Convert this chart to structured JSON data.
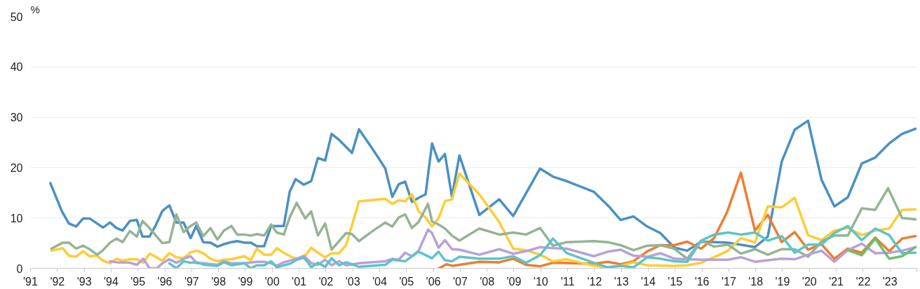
{
  "chart_data": {
    "type": "line",
    "ylabel": "%",
    "xlim": [
      1991,
      2024
    ],
    "ylim": [
      0,
      50
    ],
    "yticks": [
      0,
      10,
      20,
      30,
      40,
      50
    ],
    "xticks": [
      {
        "value": 1991,
        "label": "'91"
      },
      {
        "value": 1992,
        "label": "'92"
      },
      {
        "value": 1993,
        "label": "'93"
      },
      {
        "value": 1994,
        "label": "'94"
      },
      {
        "value": 1995,
        "label": "'95"
      },
      {
        "value": 1996,
        "label": "'96"
      },
      {
        "value": 1997,
        "label": "'97"
      },
      {
        "value": 1998,
        "label": "'98"
      },
      {
        "value": 1999,
        "label": "'99"
      },
      {
        "value": 2000,
        "label": "'00"
      },
      {
        "value": 2001,
        "label": "'01"
      },
      {
        "value": 2002,
        "label": "'02"
      },
      {
        "value": 2003,
        "label": "'03"
      },
      {
        "value": 2004,
        "label": "'04"
      },
      {
        "value": 2005,
        "label": "'05"
      },
      {
        "value": 2006,
        "label": "'06"
      },
      {
        "value": 2007,
        "label": "'07"
      },
      {
        "value": 2008,
        "label": "'08"
      },
      {
        "value": 2009,
        "label": "'09"
      },
      {
        "value": 2010,
        "label": "'10"
      },
      {
        "value": 2011,
        "label": "'11"
      },
      {
        "value": 2012,
        "label": "'12"
      },
      {
        "value": 2013,
        "label": "'13"
      },
      {
        "value": 2014,
        "label": "'14"
      },
      {
        "value": 2015,
        "label": "'15"
      },
      {
        "value": 2016,
        "label": "'16"
      },
      {
        "value": 2017,
        "label": "'17"
      },
      {
        "value": 2018,
        "label": "'18"
      },
      {
        "value": 2019,
        "label": "'19"
      },
      {
        "value": 2020,
        "label": "'20"
      },
      {
        "value": 2021,
        "label": "'21"
      },
      {
        "value": 2022,
        "label": "'22"
      },
      {
        "value": 2023,
        "label": "'23"
      },
      {
        "value": 2024,
        "label": null
      }
    ],
    "grid": "y",
    "marker": "none",
    "line_style": "solid",
    "series": [
      {
        "color": "#4a90c4",
        "x": [
          1991.74,
          1992.17,
          1992.43,
          1992.7,
          1992.96,
          1993.2,
          1993.7,
          1993.96,
          1994.2,
          1994.43,
          1994.7,
          1994.96,
          1995.17,
          1995.43,
          1995.65,
          1995.91,
          1996.17,
          1996.43,
          1996.7,
          1996.96,
          1997.17,
          1997.43,
          1997.7,
          1997.96,
          1998.2,
          1998.48,
          1998.7,
          1998.96,
          1999.2,
          1999.43,
          1999.7,
          1999.96,
          2000.17,
          2000.43,
          2000.65,
          2000.87,
          2001.17,
          2001.45,
          2001.7,
          2001.97,
          2002.21,
          2002.49,
          2002.75,
          2002.97,
          2003.23,
          2003.71,
          2003.97,
          2004.21,
          2004.47,
          2004.71,
          2004.95,
          2005.2,
          2005.45,
          2005.71,
          2005.95,
          2006.19,
          2006.43,
          2006.69,
          2006.97,
          2007.71,
          2008.45,
          2008.97,
          2009.97,
          2010.45,
          2010.97,
          2011.97,
          2012.53,
          2012.97,
          2013.45,
          2013.93,
          2014.45,
          2014.97,
          2015.45,
          2015.97,
          2016.97,
          2017.97,
          2018.45,
          2018.97,
          2019.45,
          2019.95,
          2020.45,
          2020.93,
          2021.43,
          2021.95,
          2022.45,
          2022.97,
          2023.45,
          2023.95
        ],
        "values": [
          16.9,
          11.3,
          8.9,
          8.3,
          9.9,
          9.9,
          8.1,
          9.1,
          8.0,
          7.5,
          9.4,
          9.6,
          6.3,
          6.3,
          8.4,
          11.4,
          12.5,
          9.1,
          9.1,
          6.0,
          8.4,
          5.2,
          5.1,
          4.3,
          4.8,
          5.2,
          5.4,
          5.1,
          5.1,
          4.4,
          4.4,
          8.4,
          8.4,
          8.4,
          15.2,
          17.7,
          16.6,
          17.3,
          21.9,
          21.4,
          26.7,
          25.5,
          24.1,
          22.9,
          27.6,
          23.9,
          21.8,
          19.8,
          14.2,
          16.7,
          17.2,
          13.2,
          14.0,
          14.7,
          24.8,
          21.2,
          22.7,
          14.2,
          22.4,
          10.6,
          13.7,
          10.4,
          19.8,
          18.2,
          17.3,
          15.2,
          12.3,
          9.6,
          10.3,
          8.4,
          7.0,
          4.1,
          3.5,
          5.3,
          5.1,
          4.2,
          6.3,
          21.2,
          27.5,
          29.3,
          17.6,
          12.3,
          14.1,
          20.8,
          22.0,
          24.8,
          26.7,
          27.7
        ]
      },
      {
        "color": "#ed7d31",
        "x": [
          2006.21,
          2006.49,
          2006.71,
          2007.71,
          2008.45,
          2008.97,
          2009.45,
          2009.97,
          2010.45,
          2011.97,
          2012.49,
          2012.97,
          2013.45,
          2013.97,
          2014.45,
          2014.97,
          2015.45,
          2015.97,
          2016.45,
          2016.93,
          2017.45,
          2017.97,
          2018.45,
          2018.97,
          2019.45,
          2019.95,
          2020.45,
          2020.93,
          2021.43,
          2021.95,
          2022.45,
          2022.97,
          2023.45,
          2023.95
        ],
        "values": [
          0,
          0.8,
          0.5,
          1.3,
          1.2,
          1.9,
          0.7,
          0.4,
          1.1,
          0.9,
          1.3,
          0.8,
          1.4,
          3.4,
          4.6,
          4.6,
          5.3,
          3.9,
          6.0,
          11.1,
          19.0,
          7.5,
          10.6,
          5.2,
          7.2,
          3.7,
          4.8,
          1.9,
          3.9,
          3.1,
          6.1,
          3.4,
          5.9,
          6.4
        ]
      },
      {
        "color": "#ffcc33",
        "x": [
          1991.78,
          1992.2,
          1992.43,
          1992.7,
          1992.96,
          1993.2,
          1993.48,
          1993.7,
          1993.96,
          1994.2,
          1994.43,
          1994.7,
          1994.96,
          1995.2,
          1995.43,
          1995.7,
          1995.91,
          1996.17,
          1996.43,
          1996.7,
          1996.96,
          1997.2,
          1997.46,
          1997.7,
          1997.96,
          1998.2,
          1998.48,
          1998.96,
          1999.2,
          1999.43,
          1999.7,
          1999.96,
          2000.17,
          2000.43,
          2000.7,
          2000.91,
          2001.26,
          2001.45,
          2001.7,
          2001.97,
          2002.21,
          2002.49,
          2002.75,
          2003.23,
          2004.21,
          2004.47,
          2004.71,
          2004.95,
          2005.2,
          2005.45,
          2005.71,
          2005.95,
          2006.19,
          2006.43,
          2006.69,
          2006.97,
          2007.71,
          2008.45,
          2008.97,
          2009.45,
          2009.97,
          2010.45,
          2010.97,
          2011.97,
          2012.49,
          2012.97,
          2013.45,
          2013.97,
          2014.97,
          2015.45,
          2015.97,
          2016.45,
          2016.97,
          2017.45,
          2017.97,
          2018.45,
          2018.97,
          2019.45,
          2019.95,
          2020.45,
          2020.93,
          2021.43,
          2021.95,
          2022.45,
          2022.97,
          2023.45,
          2023.95
        ],
        "values": [
          3.5,
          4.0,
          2.5,
          2.3,
          3.4,
          2.4,
          2.5,
          1.5,
          1.0,
          1.9,
          1.5,
          1.8,
          1.8,
          1.1,
          2.9,
          2.2,
          1.5,
          3.0,
          2.2,
          2.0,
          3.2,
          3.5,
          2.9,
          1.9,
          1.4,
          1.7,
          1.8,
          2.4,
          1.6,
          3.9,
          2.7,
          2.7,
          4.0,
          3.1,
          2.3,
          1.9,
          2.7,
          4.1,
          3.1,
          2.2,
          3.0,
          3.0,
          4.6,
          13.3,
          13.8,
          12.8,
          13.5,
          13.3,
          14.7,
          11.3,
          10.1,
          8.3,
          9.9,
          13.3,
          13.7,
          18.8,
          14.7,
          9.2,
          3.9,
          3.6,
          2.7,
          1.4,
          1.8,
          0.5,
          0.2,
          0.5,
          1.2,
          0.6,
          0.5,
          0.6,
          1.1,
          2.2,
          3.5,
          6.0,
          5.1,
          12.3,
          12.1,
          14.0,
          6.6,
          5.6,
          7.5,
          8.0,
          6.6,
          7.5,
          7.9,
          11.6,
          11.7
        ]
      },
      {
        "color": "#94b494",
        "x": [
          1991.78,
          1992.2,
          1992.43,
          1992.7,
          1992.96,
          1993.2,
          1993.48,
          1993.7,
          1993.96,
          1994.2,
          1994.43,
          1994.7,
          1994.96,
          1995.17,
          1995.43,
          1995.7,
          1995.91,
          1996.17,
          1996.43,
          1996.7,
          1996.96,
          1997.17,
          1997.43,
          1997.7,
          1997.96,
          1998.2,
          1998.48,
          1998.7,
          1998.96,
          1999.2,
          1999.43,
          1999.7,
          1999.96,
          2000.17,
          2000.43,
          2000.65,
          2000.91,
          2001.23,
          2001.45,
          2001.7,
          2001.97,
          2002.21,
          2002.75,
          2002.97,
          2003.23,
          2003.71,
          2004.21,
          2004.47,
          2004.71,
          2004.95,
          2005.2,
          2005.45,
          2005.8,
          2005.95,
          2006.19,
          2006.43,
          2006.69,
          2006.97,
          2007.71,
          2008.45,
          2008.97,
          2009.45,
          2009.97,
          2010.45,
          2010.97,
          2011.97,
          2012.49,
          2012.97,
          2013.45,
          2013.97,
          2014.45,
          2014.97,
          2015.45,
          2015.97,
          2016.45,
          2016.97,
          2017.45,
          2017.97,
          2018.45,
          2018.97,
          2019.45,
          2019.95,
          2020.45,
          2020.93,
          2021.43,
          2021.95,
          2022.45,
          2022.93,
          2023.45,
          2023.95
        ],
        "values": [
          3.9,
          5.1,
          5.1,
          3.9,
          4.5,
          3.8,
          2.7,
          3.6,
          5.1,
          5.9,
          5.2,
          7.4,
          6.3,
          9.4,
          8.0,
          6.3,
          5.0,
          5.2,
          10.7,
          7.2,
          8.4,
          9.1,
          6.4,
          8.0,
          5.7,
          7.5,
          8.4,
          6.7,
          6.7,
          6.5,
          6.8,
          6.5,
          8.7,
          7.1,
          6.7,
          10.1,
          13.0,
          9.9,
          11.3,
          6.5,
          8.9,
          3.7,
          7.0,
          6.8,
          5.4,
          7.3,
          9.1,
          8.3,
          10.1,
          10.7,
          8.0,
          9.2,
          12.8,
          9.3,
          8.7,
          7.9,
          6.5,
          5.5,
          7.9,
          6.7,
          7.1,
          6.7,
          8.0,
          4.5,
          5.2,
          5.4,
          5.2,
          4.6,
          3.6,
          4.5,
          4.6,
          3.9,
          1.9,
          5.5,
          4.3,
          4.7,
          2.9,
          3.8,
          2.7,
          3.8,
          3.8,
          2.3,
          5.3,
          6.5,
          6.5,
          11.9,
          11.6,
          15.9,
          10.0,
          9.7
        ]
      },
      {
        "color": "#b9a0d9",
        "x": [
          1993.96,
          1994.2,
          1994.7,
          1994.96,
          1995.2,
          1995.43,
          1995.7,
          1995.91,
          1996.17,
          1996.43,
          1996.7,
          1996.96,
          1997.2,
          1997.46,
          1997.96,
          1998.2,
          1998.48,
          1998.96,
          1999.43,
          1999.7,
          1999.96,
          2000.17,
          2000.43,
          2000.91,
          2001.2,
          2001.45,
          2001.7,
          2001.97,
          2002.21,
          2002.49,
          2002.75,
          2003.23,
          2004.21,
          2004.47,
          2004.71,
          2004.95,
          2005.2,
          2005.45,
          2005.8,
          2005.95,
          2006.19,
          2006.43,
          2006.69,
          2006.97,
          2007.71,
          2008.45,
          2008.97,
          2009.45,
          2009.97,
          2010.45,
          2010.97,
          2011.97,
          2012.49,
          2012.97,
          2013.45,
          2013.97,
          2014.45,
          2014.97,
          2015.97,
          2016.97,
          2017.45,
          2017.97,
          2018.45,
          2018.97,
          2019.45,
          2019.95,
          2020.45,
          2020.93,
          2021.43,
          2021.95,
          2022.45,
          2022.97,
          2023.45,
          2023.95
        ],
        "values": [
          1.4,
          1.2,
          1.1,
          0.7,
          1.9,
          0,
          0,
          1.0,
          1.8,
          1.1,
          1.9,
          2.4,
          1.0,
          1.0,
          0.7,
          1.4,
          1.0,
          1.0,
          1.3,
          1.3,
          1.0,
          0.5,
          1.2,
          1.9,
          2.4,
          1.0,
          0.7,
          1.7,
          0.6,
          1.4,
          0.6,
          1.0,
          1.4,
          1.9,
          1.7,
          3.1,
          2.4,
          3.5,
          7.7,
          7.0,
          4.1,
          5.6,
          3.8,
          3.7,
          2.7,
          3.8,
          2.9,
          3.4,
          4.2,
          4.0,
          3.9,
          2.4,
          3.3,
          3.7,
          2.5,
          2.3,
          3.0,
          1.9,
          1.7,
          1.7,
          2.2,
          1.3,
          1.6,
          1.9,
          1.8,
          2.7,
          3.5,
          1.3,
          3.6,
          4.9,
          3.0,
          3.1,
          3.5,
          4.2
        ]
      },
      {
        "color": "#5bc4cc",
        "x": [
          1996.17,
          1996.43,
          1996.7,
          1996.96,
          1997.2,
          1997.46,
          1997.96,
          1998.2,
          1998.48,
          1998.96,
          1999.2,
          1999.43,
          1999.7,
          1999.96,
          2000.17,
          2000.43,
          2000.7,
          2000.91,
          2001.17,
          2001.35,
          2001.45,
          2001.7,
          2001.97,
          2002.21,
          2002.49,
          2002.75,
          2003.23,
          2004.21,
          2004.47,
          2004.95,
          2005.45,
          2005.95,
          2006.19,
          2006.43,
          2006.69,
          2006.97,
          2007.71,
          2008.45,
          2008.97,
          2009.45,
          2009.97,
          2010.45,
          2010.97,
          2011.97,
          2012.49,
          2012.97,
          2013.45,
          2013.97,
          2014.45,
          2014.97,
          2015.45,
          2015.97,
          2016.45,
          2016.97,
          2017.45,
          2017.97,
          2018.45,
          2018.97,
          2019.45,
          2019.95,
          2020.45,
          2020.93,
          2021.43,
          2021.95,
          2022.45,
          2022.97,
          2023.45,
          2023.95
        ],
        "values": [
          1.0,
          0,
          1.4,
          1.1,
          1.2,
          0.7,
          0.5,
          1.2,
          0.6,
          1.0,
          0,
          0.6,
          0.6,
          1.4,
          0.2,
          0.6,
          1.0,
          1.7,
          2.1,
          1.0,
          0.2,
          1.1,
          0.3,
          2.0,
          0.6,
          1.2,
          0.3,
          0.7,
          1.7,
          1.4,
          3.3,
          2.0,
          3.3,
          1.6,
          1.4,
          2.3,
          1.9,
          1.9,
          2.4,
          1.1,
          2.6,
          5.9,
          3.0,
          1.1,
          0.2,
          0.5,
          0.2,
          2.2,
          1.9,
          1.4,
          1.3,
          5.5,
          6.7,
          7.1,
          6.7,
          7.1,
          5.5,
          6.4,
          3.1,
          4.7,
          4.7,
          7.0,
          8.4,
          5.6,
          7.9,
          6.6,
          3.0,
          3.1
        ]
      },
      {
        "color": "#6cbf6c",
        "x": [
          2021.43,
          2021.95,
          2022.45,
          2022.97,
          2023.45,
          2023.95
        ],
        "values": [
          3.6,
          2.6,
          5.9,
          1.9,
          2.4,
          4.2
        ]
      }
    ]
  }
}
